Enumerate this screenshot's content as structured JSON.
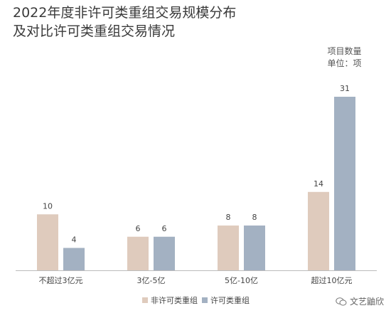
{
  "title_lines": [
    "2022年度非许可类重组交易规模分布",
    "及对比许可类重组交易情况"
  ],
  "unit_lines": [
    "项目数量",
    "单位：项"
  ],
  "watermark": "文艺鼬欣",
  "colors": {
    "non_license": "#dfcbbd",
    "license": "#a3b1c2",
    "axis": "#bbbbbb"
  },
  "chart_data": {
    "type": "bar",
    "title": "2022年度非许可类重组交易规模分布及对比许可类重组交易情况",
    "categories": [
      "不超过3亿元",
      "3亿-5亿",
      "5亿-10亿",
      "超过10亿元"
    ],
    "series": [
      {
        "name": "非许可类重组",
        "values": [
          10,
          6,
          8,
          14
        ]
      },
      {
        "name": "许可类重组",
        "values": [
          4,
          6,
          8,
          31
        ]
      }
    ],
    "ylim": [
      0,
      31
    ],
    "grid": false,
    "legend": "bottom-center"
  }
}
